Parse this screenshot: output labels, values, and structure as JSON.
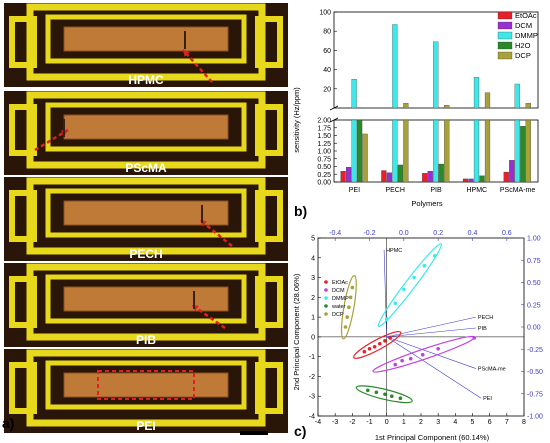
{
  "panel_a": {
    "letter": "a)",
    "devices": [
      {
        "label": "HPMC"
      },
      {
        "label": "PScMA"
      },
      {
        "label": "PECH"
      },
      {
        "label": "PIB"
      },
      {
        "label": "PEI"
      }
    ],
    "colors": {
      "electrode": "#e8d81c",
      "film": "#c07a38",
      "background": "#2a1608",
      "arrow": "#e02020"
    }
  },
  "chart_data": [
    {
      "type": "bar",
      "panel": "b)",
      "xlabel": "Polymers",
      "ylabel": "sensitivity (Hz/ppm)",
      "categories": [
        "PEI",
        "PECH",
        "PIB",
        "HPMC",
        "PScMA-me"
      ],
      "series": [
        {
          "name": "EtOAc",
          "color": "#e8202a",
          "values": [
            0.35,
            0.37,
            0.28,
            0.1,
            0.32
          ]
        },
        {
          "name": "DCM",
          "color": "#9a2fd0",
          "values": [
            0.48,
            0.3,
            0.35,
            0.1,
            0.7
          ]
        },
        {
          "name": "DMMP",
          "color": "#3ee8e8",
          "values": [
            30,
            87,
            69,
            32,
            25
          ]
        },
        {
          "name": "H2O",
          "color": "#2a8a2a",
          "values": [
            2.0,
            0.55,
            0.58,
            0.2,
            1.8
          ]
        },
        {
          "name": "DCP",
          "color": "#a8a03a",
          "values": [
            1.55,
            5,
            3,
            16,
            5
          ]
        }
      ],
      "y_axis": {
        "break": true,
        "lower": {
          "range": [
            0,
            2.0
          ],
          "ticks": [
            "0.00",
            "0.25",
            "0.50",
            "0.75",
            "1.00",
            "1.25",
            "1.50",
            "1.75",
            "2.00"
          ]
        },
        "upper": {
          "range": [
            0,
            100
          ],
          "ticks": [
            "20",
            "40",
            "60",
            "80",
            "100"
          ]
        }
      },
      "legend": "top-right"
    },
    {
      "type": "scatter",
      "panel": "c)",
      "xlabel": "1st Principal Component (60.14%)",
      "ylabel": "2nd Principal Component (28.06%)",
      "xlim": [
        -4,
        8
      ],
      "ylim": [
        -4,
        5
      ],
      "x_ticks": [
        "-4",
        "-3",
        "-2",
        "-1",
        "0",
        "1",
        "2",
        "3",
        "4",
        "5",
        "6",
        "7",
        "8"
      ],
      "y_ticks": [
        "-4",
        "-3",
        "-2",
        "-1",
        "0",
        "1",
        "2",
        "3",
        "4",
        "5"
      ],
      "top_ticks": [
        "-0.4",
        "-0.2",
        "0.0",
        "0.2",
        "0.4",
        "0.6"
      ],
      "right_ticks": [
        "-1.00",
        "-0.75",
        "-0.50",
        "-0.25",
        "0.00",
        "0.25",
        "0.50",
        "0.75",
        "1.00"
      ],
      "legend": "top-left",
      "series": [
        {
          "name": "EtOAc",
          "color": "#e8202a",
          "points": [
            [
              -1.3,
              -0.75
            ],
            [
              -1.0,
              -0.6
            ],
            [
              -0.7,
              -0.5
            ],
            [
              -0.4,
              -0.35
            ],
            [
              -0.1,
              -0.2
            ],
            [
              0.2,
              -0.05
            ]
          ]
        },
        {
          "name": "DCM",
          "color": "#c040e0",
          "points": [
            [
              0.5,
              -1.4
            ],
            [
              0.9,
              -1.2
            ],
            [
              1.4,
              -1.1
            ],
            [
              2.1,
              -0.9
            ],
            [
              3.0,
              -0.6
            ],
            [
              5.1,
              -0.05
            ]
          ]
        },
        {
          "name": "DMMP",
          "color": "#3ee8e8",
          "points": [
            [
              0.0,
              0.9
            ],
            [
              0.5,
              1.7
            ],
            [
              1.0,
              2.4
            ],
            [
              1.6,
              3.0
            ],
            [
              2.2,
              3.6
            ],
            [
              2.8,
              4.1
            ]
          ]
        },
        {
          "name": "water",
          "color": "#2a8a2a",
          "points": [
            [
              -1.1,
              -2.7
            ],
            [
              -0.6,
              -2.8
            ],
            [
              -0.1,
              -2.9
            ],
            [
              0.3,
              -3.0
            ],
            [
              0.8,
              -3.1
            ]
          ]
        },
        {
          "name": "DCP",
          "color": "#a8a03a",
          "points": [
            [
              -2.4,
              0.5
            ],
            [
              -2.3,
              1.0
            ],
            [
              -2.2,
              1.5
            ],
            [
              -2.1,
              2.0
            ],
            [
              -2.0,
              2.5
            ]
          ]
        }
      ],
      "loadings": [
        {
          "label": "HPMC",
          "x": -0.15,
          "y": 4.4
        },
        {
          "label": "PECH",
          "x": 5.2,
          "y": 1.0
        },
        {
          "label": "PIB",
          "x": 5.2,
          "y": 0.45
        },
        {
          "label": "PScMA-me",
          "x": 5.2,
          "y": -1.6
        },
        {
          "label": "PEI",
          "x": 5.5,
          "y": -3.1
        }
      ]
    }
  ]
}
